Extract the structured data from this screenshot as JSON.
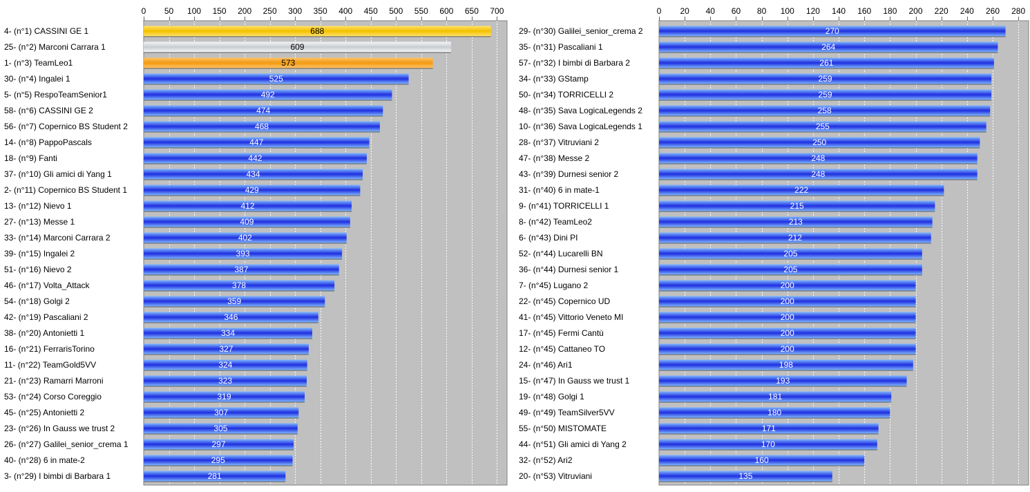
{
  "colors": {
    "plot_bg": "#c0c0c0",
    "grid": "#ffffff",
    "bar_blue_dark": "#1f2fe0",
    "bar_blue_light": "#7fb6ff",
    "gold": "#f3c000",
    "silver": "#c9cdd1",
    "bronze": "#f29a12"
  },
  "chart_data": [
    {
      "type": "bar",
      "orientation": "horizontal",
      "xlim": [
        0,
        720
      ],
      "xticks": [
        0,
        50,
        100,
        150,
        200,
        250,
        300,
        350,
        400,
        450,
        500,
        550,
        600,
        650,
        700
      ],
      "grid": true,
      "categories": [
        "4- (n°1) CASSINI GE 1",
        "25- (n°2) Marconi Carrara 1",
        "1- (n°3) TeamLeo1",
        "30- (n°4) Ingalei 1",
        "5- (n°5) RespoTeamSenior1",
        "58- (n°6) CASSINI GE 2",
        "56- (n°7) Copernico BS Student 2",
        "14- (n°8) PappoPascals",
        "18- (n°9) Fanti",
        "37- (n°10) Gli amici di Yang 1",
        "2- (n°11) Copernico BS Student 1",
        "13- (n°12) Nievo 1",
        "27- (n°13) Messe 1",
        "33- (n°14) Marconi Carrara 2",
        "39- (n°15) Ingalei 2",
        "51- (n°16) Nievo 2",
        "46- (n°17) Volta_Attack",
        "54- (n°18) Golgi 2",
        "42- (n°19) Pascaliani 2",
        "38- (n°20) Antonietti 1",
        "16- (n°21) FerrarisTorino",
        "11- (n°22) TeamGold5VV",
        "21- (n°23) Ramarri Marroni",
        "53- (n°24) Corso Coreggio",
        "45- (n°25) Antonietti 2",
        "23- (n°26) In Gauss we trust 2",
        "26- (n°27) Galilei_senior_crema 1",
        "40- (n°28) 6 in mate-2",
        "3- (n°29) I bimbi di Barbara 1"
      ],
      "values": [
        688,
        609,
        573,
        525,
        492,
        474,
        468,
        447,
        442,
        434,
        429,
        412,
        409,
        402,
        393,
        387,
        378,
        359,
        346,
        334,
        327,
        324,
        323,
        319,
        307,
        305,
        297,
        295,
        281
      ],
      "highlight": [
        "gold",
        "silver",
        "bronze"
      ]
    },
    {
      "type": "bar",
      "orientation": "horizontal",
      "xlim": [
        0,
        288
      ],
      "xticks": [
        0,
        20,
        40,
        60,
        80,
        100,
        120,
        140,
        160,
        180,
        200,
        220,
        240,
        260,
        280
      ],
      "grid": true,
      "categories": [
        "29- (n°30) Galilei_senior_crema 2",
        "35- (n°31) Pascaliani 1",
        "57- (n°32) I bimbi di Barbara 2",
        "34- (n°33) GStamp",
        "50- (n°34) TORRICELLI 2",
        "48- (n°35) Sava LogicaLegends 2",
        "10- (n°36) Sava LogicaLegends 1",
        "28- (n°37) Vitruviani 2",
        "47- (n°38) Messe 2",
        "43- (n°39) Durnesi senior 2",
        "31- (n°40) 6 in mate-1",
        "9- (n°41) TORRICELLI 1",
        "8- (n°42) TeamLeo2",
        "6- (n°43) Dini PI",
        "52- (n°44) Lucarelli BN",
        "36- (n°44) Durnesi senior 1",
        "7- (n°45) Lugano 2",
        "22- (n°45) Copernico UD",
        "41- (n°45) Vittorio Veneto MI",
        "17- (n°45) Fermi Cantù",
        "12- (n°45) Cattaneo TO",
        "24- (n°46) Ari1",
        "15- (n°47) In Gauss we trust 1",
        "19- (n°48) Golgi 1",
        "49- (n°49) TeamSilver5VV",
        "55- (n°50) MISTOMATE",
        "44- (n°51) Gli amici di Yang 2",
        "32- (n°52) Ari2",
        "20- (n°53) Vitruviani"
      ],
      "values": [
        270,
        264,
        261,
        259,
        259,
        258,
        255,
        250,
        248,
        248,
        222,
        215,
        213,
        212,
        205,
        205,
        200,
        200,
        200,
        200,
        200,
        198,
        193,
        181,
        180,
        171,
        170,
        160,
        135
      ],
      "highlight": []
    }
  ]
}
